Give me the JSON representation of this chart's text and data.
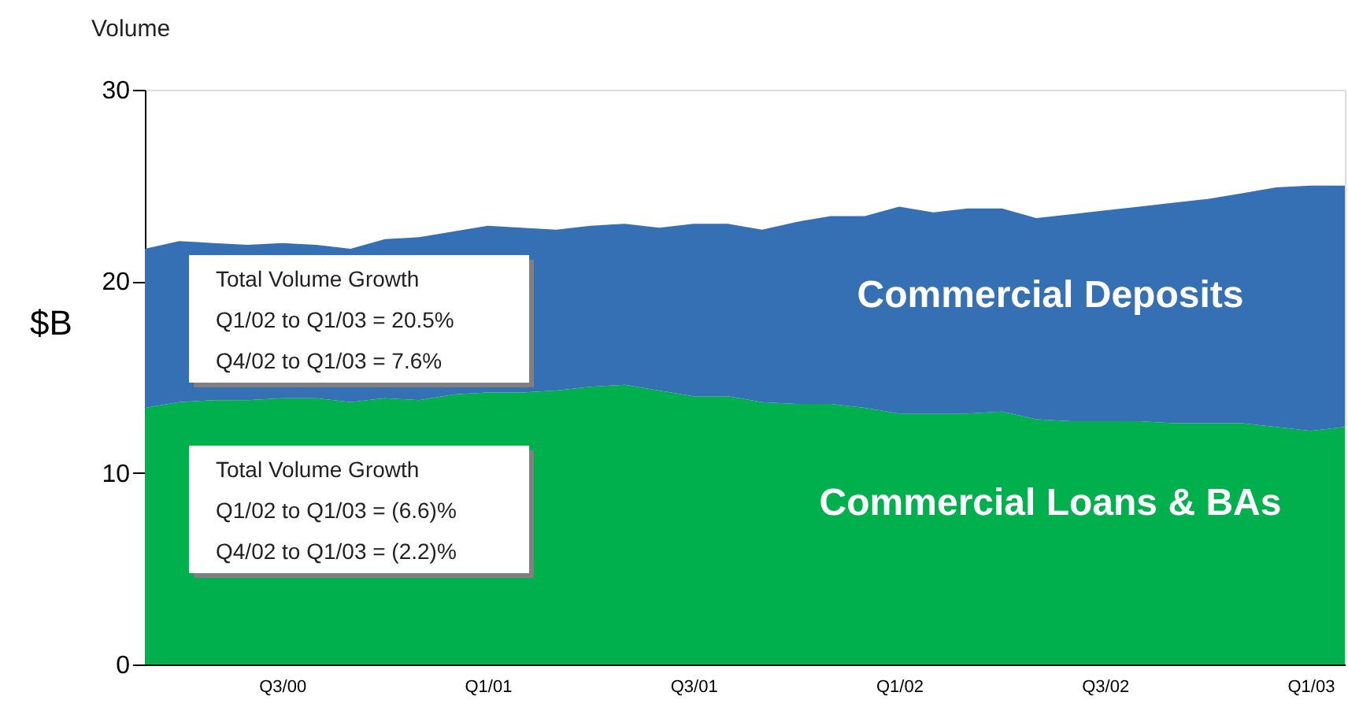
{
  "chart_data": {
    "type": "area",
    "stacked": true,
    "title": "Volume",
    "ylabel": "$B",
    "categories": [
      null,
      null,
      null,
      null,
      "Q3/00",
      null,
      null,
      null,
      null,
      null,
      "Q1/01",
      null,
      null,
      null,
      null,
      null,
      "Q3/01",
      null,
      null,
      null,
      null,
      null,
      "Q1/02",
      null,
      null,
      null,
      null,
      null,
      "Q3/02",
      null,
      null,
      null,
      null,
      null,
      "Q1/03",
      null
    ],
    "series": [
      {
        "name": "Commercial Loans & BAs",
        "color": "#00b04c",
        "values": [
          13.4,
          13.7,
          13.8,
          13.8,
          13.9,
          13.9,
          13.7,
          13.9,
          13.8,
          14.1,
          14.2,
          14.2,
          14.3,
          14.5,
          14.6,
          14.3,
          14.0,
          14.0,
          13.7,
          13.6,
          13.6,
          13.4,
          13.1,
          13.1,
          13.1,
          13.2,
          12.8,
          12.7,
          12.7,
          12.7,
          12.6,
          12.6,
          12.6,
          12.4,
          12.2,
          12.4
        ]
      },
      {
        "name": "Commercial Deposits",
        "color": "#3570b4",
        "values": [
          8.3,
          8.4,
          8.2,
          8.1,
          8.1,
          8.0,
          8.0,
          8.3,
          8.5,
          8.5,
          8.7,
          8.6,
          8.4,
          8.4,
          8.4,
          8.5,
          9.0,
          9.0,
          9.0,
          9.5,
          9.8,
          10.0,
          10.8,
          10.5,
          10.7,
          10.6,
          10.5,
          10.8,
          11.0,
          11.2,
          11.5,
          11.7,
          12.0,
          12.5,
          12.8,
          12.6
        ]
      }
    ],
    "ylim": [
      0,
      30
    ],
    "yticks": [
      0,
      10,
      20,
      30
    ],
    "grid": false,
    "legend": false,
    "annotations": [
      "Total Volume Growth",
      "Q1/02 to Q1/03 = 20.5%",
      "Q4/02 to Q1/03 = 7.6%",
      "Total Volume Growth",
      "Q1/02 to Q1/03 = (6.6)%",
      "Q4/02 to Q1/03 = (2.2)%"
    ]
  }
}
